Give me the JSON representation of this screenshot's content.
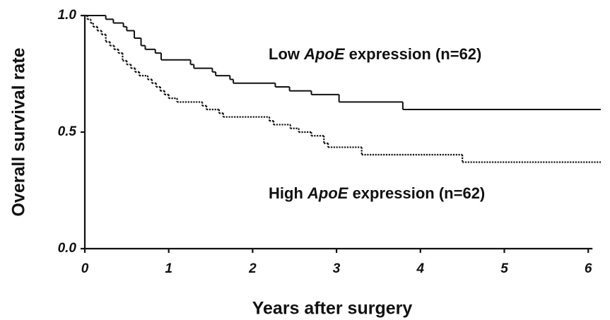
{
  "chart_data": {
    "type": "line",
    "step": "post",
    "x_label": "Years after surgery",
    "y_label": "Overall survival rate",
    "annotations": [
      [
        "Low ",
        "ApoE",
        " expression (n=62)"
      ],
      [
        "High ",
        "ApoE",
        " expression (n=62)"
      ]
    ],
    "xlim": [
      0,
      6.15
    ],
    "ylim": [
      0,
      1
    ],
    "xticks": [
      0,
      1,
      2,
      3,
      4,
      5,
      6
    ],
    "yticks": [
      {
        "value": 0,
        "label": "0.0"
      },
      {
        "value": 0.5,
        "label": "0.5"
      },
      {
        "value": 1,
        "label": "1.0"
      }
    ],
    "series": [
      {
        "color": "#111111",
        "dash": "solid",
        "x": [
          0,
          0.25,
          0.34,
          0.46,
          0.5,
          0.59,
          0.67,
          0.72,
          0.84,
          0.91,
          1.26,
          1.3,
          1.52,
          1.56,
          1.73,
          1.77,
          2.27,
          2.44,
          2.7,
          3.03,
          3.79,
          6.15
        ],
        "values": [
          1,
          0.984,
          0.968,
          0.952,
          0.935,
          0.903,
          0.871,
          0.855,
          0.839,
          0.81,
          0.79,
          0.774,
          0.758,
          0.742,
          0.726,
          0.71,
          0.694,
          0.677,
          0.661,
          0.629,
          0.597,
          0.597
        ]
      },
      {
        "color": "#111111",
        "dash": "dotted",
        "x": [
          0,
          0.03,
          0.07,
          0.1,
          0.15,
          0.2,
          0.25,
          0.3,
          0.35,
          0.4,
          0.45,
          0.5,
          0.55,
          0.6,
          0.65,
          0.75,
          0.8,
          0.85,
          0.9,
          0.95,
          1.0,
          1.1,
          1.4,
          1.45,
          1.6,
          1.65,
          2.2,
          2.25,
          2.45,
          2.55,
          2.7,
          2.85,
          2.9,
          3.3,
          4.5,
          6.15
        ],
        "values": [
          1,
          0.984,
          0.968,
          0.952,
          0.935,
          0.919,
          0.887,
          0.871,
          0.855,
          0.839,
          0.806,
          0.79,
          0.774,
          0.758,
          0.742,
          0.726,
          0.71,
          0.694,
          0.677,
          0.661,
          0.645,
          0.629,
          0.613,
          0.597,
          0.581,
          0.565,
          0.548,
          0.532,
          0.516,
          0.5,
          0.484,
          0.452,
          0.435,
          0.403,
          0.371,
          0.371
        ]
      }
    ]
  }
}
